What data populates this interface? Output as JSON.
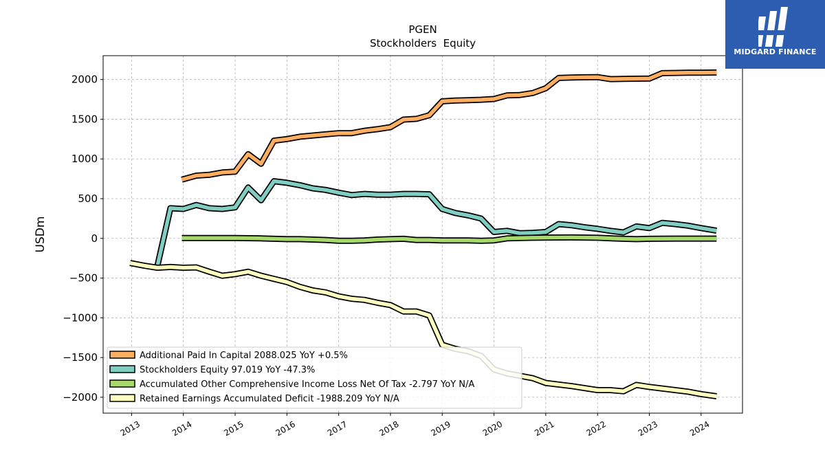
{
  "logo": {
    "text": "MIDGARD FINANCE",
    "bg_color": "#2d5db0"
  },
  "chart_data": {
    "type": "line",
    "title": "PGEN",
    "subtitle": "Stockholders  Equity",
    "xlabel": "",
    "ylabel": "USDm",
    "xlim": [
      2012.45,
      2024.8
    ],
    "ylim": [
      -2200,
      2300
    ],
    "xticks": [
      2013,
      2014,
      2015,
      2016,
      2017,
      2018,
      2019,
      2020,
      2021,
      2022,
      2023,
      2024
    ],
    "yticks": [
      -2000,
      -1500,
      -1000,
      -500,
      0,
      500,
      1000,
      1500,
      2000
    ],
    "ytick_labels": [
      "−2000",
      "−1500",
      "−1000",
      "−500",
      "0",
      "500",
      "1000",
      "1500",
      "2000"
    ],
    "grid": true,
    "legend_position": "lower-left",
    "series": [
      {
        "name": "Additional Paid In Capital  2088.025 YoY +0.5%",
        "color": "#fdae61",
        "x": [
          2013.97,
          2014.25,
          2014.5,
          2014.75,
          2015.0,
          2015.25,
          2015.5,
          2015.75,
          2016.0,
          2016.25,
          2016.5,
          2016.75,
          2017.0,
          2017.25,
          2017.5,
          2017.75,
          2018.0,
          2018.25,
          2018.5,
          2018.75,
          2019.0,
          2019.25,
          2019.5,
          2019.75,
          2020.0,
          2020.25,
          2020.5,
          2020.75,
          2021.0,
          2021.25,
          2021.5,
          2021.75,
          2022.0,
          2022.25,
          2022.5,
          2022.75,
          2023.0,
          2023.25,
          2023.5,
          2023.75,
          2024.0,
          2024.3
        ],
        "values": [
          740,
          790,
          800,
          830,
          840,
          1060,
          940,
          1230,
          1250,
          1280,
          1295,
          1310,
          1325,
          1325,
          1355,
          1375,
          1400,
          1495,
          1505,
          1550,
          1725,
          1735,
          1740,
          1745,
          1755,
          1800,
          1805,
          1830,
          1890,
          2020,
          2025,
          2028,
          2030,
          2005,
          2008,
          2010,
          2012,
          2080,
          2083,
          2085,
          2086,
          2088
        ]
      },
      {
        "name": "Stockholders Equity  97.019 YoY -47.3%",
        "color": "#80cdc1",
        "x": [
          2013.5,
          2013.75,
          2014.0,
          2014.25,
          2014.5,
          2014.75,
          2015.0,
          2015.25,
          2015.5,
          2015.75,
          2016.0,
          2016.25,
          2016.5,
          2016.75,
          2017.0,
          2017.25,
          2017.5,
          2017.75,
          2018.0,
          2018.25,
          2018.5,
          2018.75,
          2019.0,
          2019.25,
          2019.5,
          2019.75,
          2020.0,
          2020.25,
          2020.5,
          2020.75,
          2021.0,
          2021.25,
          2021.5,
          2021.75,
          2022.0,
          2022.25,
          2022.5,
          2022.75,
          2023.0,
          2023.25,
          2023.5,
          2023.75,
          2024.0,
          2024.3
        ],
        "values": [
          -340,
          380,
          370,
          420,
          380,
          370,
          390,
          640,
          480,
          720,
          700,
          670,
          630,
          610,
          575,
          545,
          560,
          550,
          550,
          560,
          560,
          555,
          370,
          320,
          290,
          250,
          80,
          95,
          65,
          70,
          80,
          180,
          165,
          140,
          120,
          95,
          75,
          150,
          130,
          195,
          180,
          160,
          130,
          97
        ]
      },
      {
        "name": "Accumulated Other Comprehensive Income Loss Net Of Tax  -2.797 YoY N/A",
        "color": "#a6d96a",
        "x": [
          2013.97,
          2014.5,
          2015.0,
          2015.5,
          2016.0,
          2016.25,
          2016.5,
          2016.75,
          2017.0,
          2017.25,
          2017.5,
          2017.75,
          2018.0,
          2018.25,
          2018.5,
          2018.75,
          2019.0,
          2019.25,
          2019.5,
          2019.75,
          2020.0,
          2020.25,
          2020.5,
          2020.75,
          2021.0,
          2021.5,
          2022.0,
          2022.5,
          2022.75,
          2023.0,
          2023.5,
          2024.0,
          2024.3
        ],
        "values": [
          5,
          5,
          5,
          0,
          -10,
          -10,
          -15,
          -20,
          -30,
          -30,
          -25,
          -15,
          -10,
          -5,
          -20,
          -20,
          -25,
          -25,
          -25,
          -30,
          -25,
          0,
          5,
          8,
          10,
          12,
          8,
          -5,
          -10,
          -5,
          -3,
          -3,
          -3
        ]
      },
      {
        "name": "Retained Earnings Accumulated Deficit  -1988.209 YoY N/A",
        "color": "#ffffbf",
        "x": [
          2012.97,
          2013.25,
          2013.5,
          2013.75,
          2014.0,
          2014.25,
          2014.5,
          2014.75,
          2015.0,
          2015.25,
          2015.5,
          2015.75,
          2016.0,
          2016.25,
          2016.5,
          2016.75,
          2017.0,
          2017.25,
          2017.5,
          2017.75,
          2018.0,
          2018.25,
          2018.5,
          2018.75,
          2019.0,
          2019.25,
          2019.5,
          2019.75,
          2020.0,
          2020.25,
          2020.5,
          2020.75,
          2021.0,
          2021.5,
          2022.0,
          2022.25,
          2022.5,
          2022.75,
          2023.0,
          2023.5,
          2023.75,
          2024.0,
          2024.3
        ],
        "values": [
          -310,
          -345,
          -370,
          -360,
          -370,
          -365,
          -420,
          -470,
          -450,
          -420,
          -470,
          -510,
          -550,
          -610,
          -655,
          -680,
          -730,
          -760,
          -775,
          -810,
          -840,
          -920,
          -920,
          -970,
          -1340,
          -1390,
          -1420,
          -1480,
          -1650,
          -1700,
          -1730,
          -1760,
          -1820,
          -1860,
          -1910,
          -1910,
          -1925,
          -1845,
          -1870,
          -1910,
          -1930,
          -1960,
          -1988
        ]
      }
    ]
  }
}
